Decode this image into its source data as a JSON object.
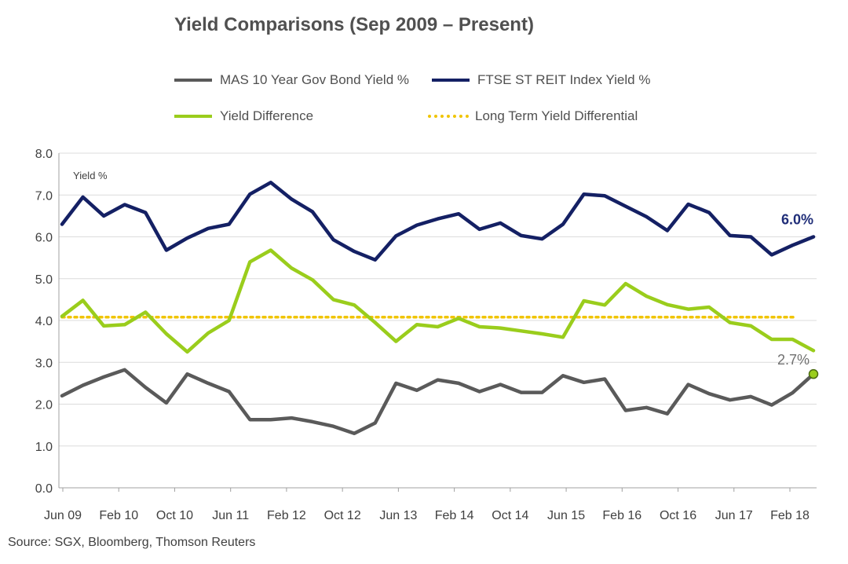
{
  "title": "Yield Comparisons (Sep 2009 – Present)",
  "source": "Source: SGX, Bloomberg, Thomson Reuters",
  "legend": [
    {
      "label": "MAS 10 Year Gov Bond Yield %",
      "color": "#5a5a5a",
      "style": "solid"
    },
    {
      "label": "FTSE ST REIT Index Yield %",
      "color": "#142064",
      "style": "solid"
    },
    {
      "label": "Yield Difference",
      "color": "#9acd1c",
      "style": "solid"
    },
    {
      "label": "Long Term Yield Differential",
      "color": "#f0c400",
      "style": "dotted"
    }
  ],
  "chart_data": {
    "type": "line",
    "title": "Yield Comparisons (Sep 2009 – Present)",
    "ylabel": "Yield %",
    "ylim": [
      0,
      8
    ],
    "yticks": [
      "0.0",
      "1.0",
      "2.0",
      "3.0",
      "4.0",
      "5.0",
      "6.0",
      "7.0",
      "8.0"
    ],
    "xlabels": [
      "Jun 09",
      "Feb 10",
      "Oct 10",
      "Jun 11",
      "Feb 12",
      "Oct 12",
      "Jun 13",
      "Feb 14",
      "Oct 14",
      "Jun 15",
      "Feb 16",
      "Oct 16",
      "Jun 17",
      "Feb 18"
    ],
    "grid": "horizontal",
    "series": [
      {
        "name": "FTSE ST REIT Index Yield %",
        "color": "#142064",
        "values": [
          6.3,
          6.95,
          6.5,
          6.77,
          6.58,
          5.68,
          5.97,
          6.2,
          6.3,
          7.02,
          7.3,
          6.9,
          6.6,
          5.93,
          5.65,
          5.45,
          6.02,
          6.28,
          6.43,
          6.55,
          6.18,
          6.33,
          6.03,
          5.95,
          6.3,
          7.02,
          6.98,
          6.73,
          6.48,
          6.15,
          6.78,
          6.58,
          6.03,
          6.0,
          5.57,
          5.8,
          6.0
        ]
      },
      {
        "name": "Yield Difference",
        "color": "#9acd1c",
        "values": [
          4.1,
          4.48,
          3.87,
          3.9,
          4.2,
          3.68,
          3.25,
          3.7,
          4.0,
          5.4,
          5.68,
          5.25,
          4.97,
          4.5,
          4.37,
          3.95,
          3.5,
          3.9,
          3.85,
          4.05,
          3.85,
          3.82,
          3.75,
          3.68,
          3.6,
          4.47,
          4.37,
          4.88,
          4.58,
          4.38,
          4.27,
          4.32,
          3.95,
          3.87,
          3.55,
          3.55,
          3.28
        ]
      },
      {
        "name": "MAS 10 Year Gov Bond Yield %",
        "color": "#5a5a5a",
        "values": [
          2.2,
          2.45,
          2.65,
          2.82,
          2.4,
          2.03,
          2.72,
          2.5,
          2.3,
          1.63,
          1.63,
          1.67,
          1.58,
          1.47,
          1.3,
          1.55,
          2.5,
          2.33,
          2.58,
          2.5,
          2.3,
          2.47,
          2.28,
          2.28,
          2.68,
          2.52,
          2.6,
          1.85,
          1.92,
          1.77,
          2.47,
          2.25,
          2.1,
          2.18,
          1.98,
          2.27,
          2.72
        ]
      }
    ],
    "reference_line": {
      "name": "Long Term Yield Differential",
      "value": 4.08,
      "color": "#f0c400"
    },
    "annotations": [
      {
        "text": "6.0%",
        "series": "FTSE ST REIT Index Yield %",
        "color": "#1f2d78"
      },
      {
        "text": "2.7%",
        "series": "MAS 10 Year Gov Bond Yield %",
        "color": "#707070"
      }
    ]
  }
}
